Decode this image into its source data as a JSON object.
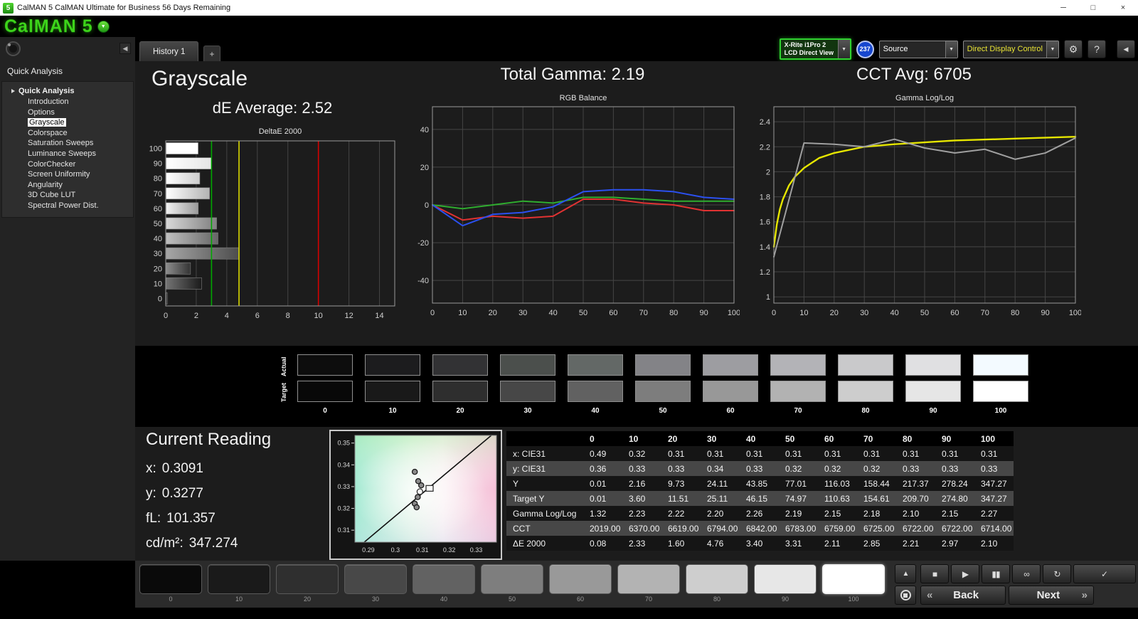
{
  "window": {
    "title": "CalMAN 5 CalMAN Ultimate for Business 56 Days Remaining",
    "app_icon": "5",
    "controls": {
      "minimize": "─",
      "maximize": "□",
      "close": "×"
    }
  },
  "logo": {
    "text": "CalMAN 5",
    "dropdown_icon": "▼"
  },
  "icons": {
    "dropdown": "▼",
    "gear": "⚙",
    "help": "?",
    "collapse_left": "◀"
  },
  "toolbar": {
    "history_tab": "History 1",
    "add_tab": "+",
    "meter": {
      "line1": "X-Rite i1Pro 2",
      "line2": "LCD Direct View"
    },
    "meter_badge": "237",
    "source": "Source",
    "display_control": "Direct Display Control",
    "accent_green": "#2fd12f",
    "badge_blue": "#1747cf",
    "ddc_text_color": "#e8e335"
  },
  "sidebar": {
    "header": "Quick Analysis",
    "tree_root": "Quick Analysis",
    "items": [
      {
        "label": "Introduction",
        "selected": false
      },
      {
        "label": "Options",
        "selected": false
      },
      {
        "label": "Grayscale",
        "selected": true
      },
      {
        "label": "Colorspace",
        "selected": false
      },
      {
        "label": "Saturation Sweeps",
        "selected": false
      },
      {
        "label": "Luminance Sweeps",
        "selected": false
      },
      {
        "label": "ColorChecker",
        "selected": false
      },
      {
        "label": "Screen Uniformity",
        "selected": false
      },
      {
        "label": "Angularity",
        "selected": false
      },
      {
        "label": "3D Cube LUT",
        "selected": false
      },
      {
        "label": "Spectral Power Dist.",
        "selected": false
      }
    ]
  },
  "summary": {
    "page_title": "Grayscale",
    "de_average": "dE Average: 2.52",
    "total_gamma": "Total Gamma: 2.19",
    "cct_avg": "CCT Avg: 6705"
  },
  "chart_data": [
    {
      "id": "deltae",
      "type": "bar",
      "orientation": "horizontal",
      "title": "DeltaE 2000",
      "categories": [
        100,
        90,
        80,
        70,
        60,
        50,
        40,
        30,
        20,
        10,
        0
      ],
      "values": [
        2.1,
        2.97,
        2.21,
        2.85,
        2.11,
        3.31,
        3.4,
        4.76,
        1.6,
        2.33,
        0.08
      ],
      "xlabel": "",
      "ylabel": "",
      "xlim": [
        0,
        15
      ],
      "xticks": [
        0,
        2,
        4,
        6,
        8,
        10,
        12,
        14
      ],
      "grid": true,
      "reference_lines": [
        {
          "value": 3,
          "color": "#00a800"
        },
        {
          "value": 4.8,
          "color": "#d8d800"
        },
        {
          "value": 10,
          "color": "#d40000"
        }
      ]
    },
    {
      "id": "rgb_balance",
      "type": "line",
      "title": "RGB Balance",
      "x": [
        0,
        10,
        20,
        30,
        40,
        50,
        60,
        70,
        80,
        90,
        100
      ],
      "series": [
        {
          "name": "Red",
          "color": "#e03232",
          "values": [
            0,
            -8,
            -6,
            -7,
            -6,
            3,
            3,
            1,
            0,
            -3,
            -3
          ]
        },
        {
          "name": "Green",
          "color": "#2fae2f",
          "values": [
            0,
            -2,
            0,
            2,
            1,
            4,
            4,
            3,
            2,
            2,
            2
          ]
        },
        {
          "name": "Blue",
          "color": "#2b50f0",
          "values": [
            0,
            -11,
            -5,
            -4,
            -1,
            7,
            8,
            8,
            7,
            4,
            3
          ]
        }
      ],
      "xlabel": "",
      "ylabel": "",
      "xlim": [
        0,
        100
      ],
      "ylim": [
        -52,
        52
      ],
      "xticks": [
        0,
        10,
        20,
        30,
        40,
        50,
        60,
        70,
        80,
        90,
        100
      ],
      "yticks": [
        40,
        20,
        0,
        -20,
        -40
      ],
      "grid": true,
      "legend": "none"
    },
    {
      "id": "gamma",
      "type": "line",
      "title": "Gamma Log/Log",
      "series": [
        {
          "name": "Target",
          "color": "#e6e600",
          "width": 2.4,
          "x": [
            0,
            1,
            2,
            3,
            5,
            7,
            10,
            15,
            20,
            30,
            40,
            60,
            80,
            100
          ],
          "values": [
            1.4,
            1.58,
            1.7,
            1.78,
            1.89,
            1.96,
            2.03,
            2.11,
            2.15,
            2.2,
            2.22,
            2.25,
            2.265,
            2.28
          ]
        },
        {
          "name": "Measured",
          "color": "#a0a0a0",
          "width": 2,
          "x": [
            0,
            10,
            20,
            30,
            40,
            50,
            60,
            70,
            80,
            90,
            100
          ],
          "values": [
            1.32,
            2.23,
            2.22,
            2.2,
            2.26,
            2.19,
            2.15,
            2.18,
            2.1,
            2.15,
            2.27
          ]
        }
      ],
      "xlabel": "",
      "ylabel": "",
      "xlim": [
        0,
        100
      ],
      "ylim": [
        0.95,
        2.52
      ],
      "xticks": [
        0,
        10,
        20,
        30,
        40,
        50,
        60,
        70,
        80,
        90,
        100
      ],
      "yticks": [
        2.4,
        2.2,
        2,
        1.8,
        1.6,
        1.4,
        1.2,
        1
      ],
      "ytick_labels": [
        "2.4",
        "2.2",
        "2",
        "1.8",
        "1.6",
        "1.4",
        "1.2",
        "1"
      ],
      "grid": true,
      "legend": "none"
    },
    {
      "id": "cie",
      "type": "scatter",
      "title": "CIE 1931 chromaticity detail",
      "xlim": [
        0.285,
        0.3375
      ],
      "ylim": [
        0.3045,
        0.3535
      ],
      "xticks": [
        0.29,
        0.3,
        0.31,
        0.32,
        0.33
      ],
      "xtick_labels": [
        "0.29",
        "0.3",
        "0.31",
        "0.32",
        "0.33"
      ],
      "yticks": [
        0.35,
        0.34,
        0.33,
        0.32,
        0.31
      ],
      "ytick_labels": [
        "0.35",
        "0.34",
        "0.33",
        "0.32",
        "0.31"
      ],
      "locus_line": [
        [
          0.2875,
          0.3035
        ],
        [
          0.3375,
          0.3555
        ]
      ],
      "points": [
        {
          "x": 0.3072,
          "y": 0.3368,
          "type": "dot"
        },
        {
          "x": 0.3085,
          "y": 0.3325,
          "type": "dot"
        },
        {
          "x": 0.3096,
          "y": 0.3306,
          "type": "dot"
        },
        {
          "x": 0.3091,
          "y": 0.3277,
          "type": "open"
        },
        {
          "x": 0.3083,
          "y": 0.3252,
          "type": "dot"
        },
        {
          "x": 0.3072,
          "y": 0.3222,
          "type": "dot"
        },
        {
          "x": 0.3079,
          "y": 0.3205,
          "type": "dot"
        },
        {
          "x": 0.3127,
          "y": 0.3292,
          "type": "square"
        }
      ]
    }
  ],
  "swatch_strip": {
    "row_labels": [
      "Actual",
      "Target"
    ],
    "levels": [
      "0",
      "10",
      "20",
      "30",
      "40",
      "50",
      "60",
      "70",
      "80",
      "90",
      "100"
    ],
    "actual_colors": [
      "#0d0d0d",
      "#1c1c1e",
      "#323234",
      "#4b4f4c",
      "#636866",
      "#838387",
      "#9d9da1",
      "#b3b3b7",
      "#c9c9cb",
      "#e0e0e2",
      "#f3faff"
    ],
    "target_colors": [
      "#080808",
      "#191919",
      "#2e2e2e",
      "#474747",
      "#616161",
      "#7d7d7d",
      "#989898",
      "#b2b2b2",
      "#cdcdcd",
      "#e6e6e6",
      "#ffffff"
    ]
  },
  "current_reading": {
    "title": "Current Reading",
    "lines": [
      {
        "label": "x:",
        "value": "0.3091"
      },
      {
        "label": "y:",
        "value": "0.3277"
      },
      {
        "label": "fL:",
        "value": "101.357"
      },
      {
        "label": "cd/m²:",
        "value": "347.274"
      }
    ]
  },
  "table": {
    "columns": [
      "",
      "0",
      "10",
      "20",
      "30",
      "40",
      "50",
      "60",
      "70",
      "80",
      "90",
      "100"
    ],
    "rows": [
      {
        "label": "x: CIE31",
        "values": [
          "0.49",
          "0.32",
          "0.31",
          "0.31",
          "0.31",
          "0.31",
          "0.31",
          "0.31",
          "0.31",
          "0.31",
          "0.31"
        ]
      },
      {
        "label": "y: CIE31",
        "values": [
          "0.36",
          "0.33",
          "0.33",
          "0.34",
          "0.33",
          "0.32",
          "0.32",
          "0.32",
          "0.33",
          "0.33",
          "0.33"
        ]
      },
      {
        "label": "Y",
        "values": [
          "0.01",
          "2.16",
          "9.73",
          "24.11",
          "43.85",
          "77.01",
          "116.03",
          "158.44",
          "217.37",
          "278.24",
          "347.27"
        ]
      },
      {
        "label": "Target Y",
        "values": [
          "0.01",
          "3.60",
          "11.51",
          "25.11",
          "46.15",
          "74.97",
          "110.63",
          "154.61",
          "209.70",
          "274.80",
          "347.27"
        ]
      },
      {
        "label": "Gamma Log/Log",
        "values": [
          "1.32",
          "2.23",
          "2.22",
          "2.20",
          "2.26",
          "2.19",
          "2.15",
          "2.18",
          "2.10",
          "2.15",
          "2.27"
        ]
      },
      {
        "label": "CCT",
        "values": [
          "2019.00",
          "6370.00",
          "6619.00",
          "6794.00",
          "6842.00",
          "6783.00",
          "6759.00",
          "6725.00",
          "6722.00",
          "6722.00",
          "6714.00"
        ]
      },
      {
        "label": "ΔE 2000",
        "values": [
          "0.08",
          "2.33",
          "1.60",
          "4.76",
          "3.40",
          "3.31",
          "2.11",
          "2.85",
          "2.21",
          "2.97",
          "2.10"
        ]
      }
    ]
  },
  "bottom": {
    "levels": [
      {
        "label": "0",
        "color": "#0a0a0a"
      },
      {
        "label": "10",
        "color": "#1a1a1a"
      },
      {
        "label": "20",
        "color": "#2f2f2f"
      },
      {
        "label": "30",
        "color": "#484848"
      },
      {
        "label": "40",
        "color": "#626262"
      },
      {
        "label": "50",
        "color": "#7e7e7e"
      },
      {
        "label": "60",
        "color": "#999999"
      },
      {
        "label": "70",
        "color": "#b3b3b3"
      },
      {
        "label": "80",
        "color": "#cecece"
      },
      {
        "label": "90",
        "color": "#e7e7e7"
      },
      {
        "label": "100",
        "color": "#ffffff"
      }
    ],
    "selected_level": "100",
    "eject_icon": "▲",
    "transport": [
      {
        "name": "stop",
        "glyph": "■"
      },
      {
        "name": "play",
        "glyph": "▶"
      },
      {
        "name": "pause",
        "glyph": "▮▮"
      },
      {
        "name": "continuous-measure",
        "glyph": "∞"
      },
      {
        "name": "loop",
        "glyph": "↻"
      },
      {
        "name": "accept",
        "glyph": "✓",
        "wide": true
      }
    ],
    "back": "Back",
    "next": "Next",
    "back_arrow": "«",
    "next_arrow": "»"
  }
}
